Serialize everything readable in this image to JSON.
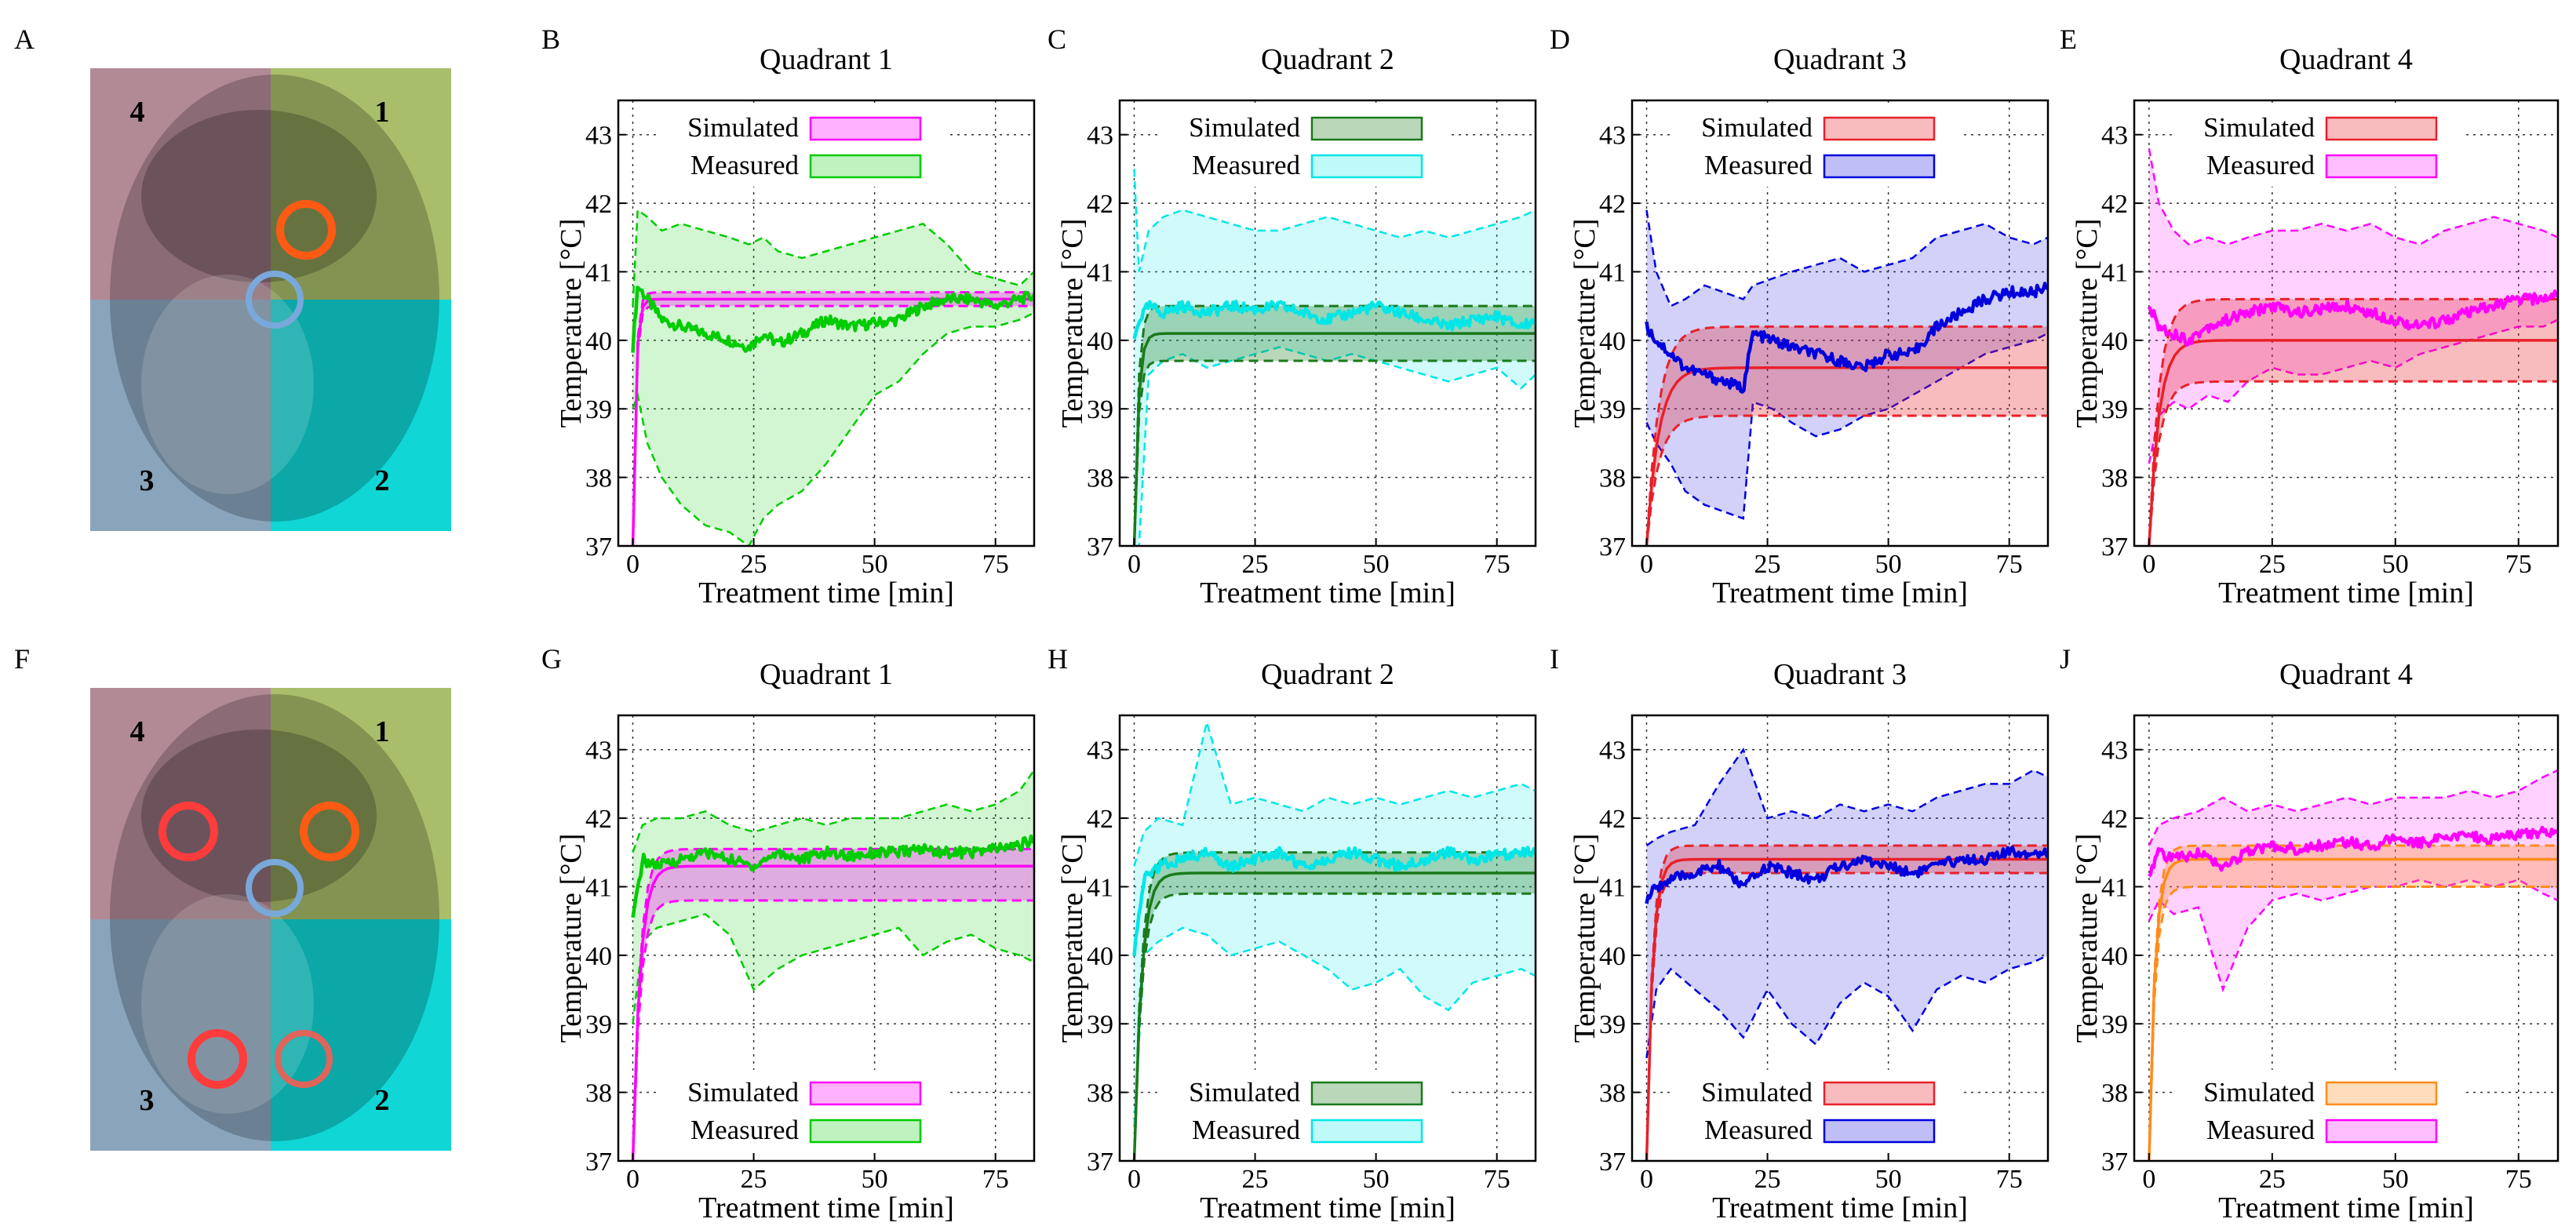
{
  "colors": {
    "magenta": "#ff00ff",
    "green": "#00cc00",
    "darkgreen": "#1a7a1a",
    "cyan": "#00e6e6",
    "red": "#e8202a",
    "blue": "#0000dd",
    "orange": "#ff8c1a"
  },
  "anatomy": [
    {
      "letter": "A",
      "quadrant_labels": [
        "4",
        "1",
        "3",
        "2"
      ],
      "circles": [
        "orange-circle",
        "blue-circle"
      ]
    },
    {
      "letter": "F",
      "quadrant_labels": [
        "4",
        "1",
        "3",
        "2"
      ],
      "circles": [
        "red-circle",
        "orange-circle",
        "blue-circle",
        "red-circle",
        "red-circle"
      ]
    }
  ],
  "chart_data": [
    {
      "letter": "B",
      "type": "line",
      "title": "Quadrant 1",
      "xlabel": "Treatment time [min]",
      "ylabel": "Temperature [°C]",
      "xlim": [
        -3,
        83
      ],
      "ylim": [
        37,
        43.5
      ],
      "xticks": [
        0,
        25,
        50,
        75
      ],
      "yticks": [
        37,
        38,
        39,
        40,
        41,
        42,
        43
      ],
      "legend": {
        "position": "top",
        "simulated": "Simulated",
        "measured": "Measured"
      },
      "sim_color": "#ff00ff",
      "meas_color": "#00cc00",
      "simulated": {
        "plateau": 40.6,
        "band": [
          40.5,
          40.7
        ],
        "tau": 0.6
      },
      "measured": {
        "x": [
          0,
          1,
          3,
          6,
          10,
          15,
          20,
          24,
          27,
          30,
          35,
          40,
          45,
          50,
          55,
          60,
          65,
          70,
          75,
          80,
          83
        ],
        "mean": [
          39.9,
          40.8,
          40.6,
          40.3,
          40.2,
          40.1,
          40.0,
          39.9,
          40.1,
          39.95,
          40.1,
          40.3,
          40.2,
          40.25,
          40.3,
          40.5,
          40.6,
          40.6,
          40.5,
          40.6,
          40.65
        ],
        "upper": [
          40.5,
          41.9,
          41.8,
          41.6,
          41.7,
          41.6,
          41.5,
          41.4,
          41.5,
          41.3,
          41.2,
          41.3,
          41.4,
          41.5,
          41.6,
          41.7,
          41.4,
          41.0,
          40.9,
          40.8,
          41.0
        ],
        "lower": [
          39.0,
          39.2,
          38.5,
          38.0,
          37.6,
          37.3,
          37.2,
          37.0,
          37.4,
          37.6,
          37.8,
          38.2,
          38.7,
          39.2,
          39.4,
          39.8,
          40.1,
          40.2,
          40.2,
          40.3,
          40.4
        ]
      }
    },
    {
      "letter": "C",
      "type": "line",
      "title": "Quadrant 2",
      "xlabel": "Treatment time [min]",
      "ylabel": "Temperature [°C]",
      "xlim": [
        -3,
        83
      ],
      "ylim": [
        37,
        43.5
      ],
      "xticks": [
        0,
        25,
        50,
        75
      ],
      "yticks": [
        37,
        38,
        39,
        40,
        41,
        42,
        43
      ],
      "legend": {
        "position": "top",
        "simulated": "Simulated",
        "measured": "Measured"
      },
      "sim_color": "#1a7a1a",
      "meas_color": "#00e6e6",
      "simulated": {
        "plateau": 40.1,
        "band": [
          39.7,
          40.5
        ],
        "tau": 0.8
      },
      "measured": {
        "x": [
          0,
          1,
          3,
          6,
          10,
          15,
          20,
          25,
          30,
          35,
          40,
          45,
          50,
          55,
          60,
          65,
          70,
          75,
          80,
          83
        ],
        "mean": [
          40.0,
          40.3,
          40.5,
          40.4,
          40.5,
          40.4,
          40.5,
          40.45,
          40.5,
          40.4,
          40.3,
          40.4,
          40.5,
          40.4,
          40.3,
          40.2,
          40.3,
          40.35,
          40.2,
          40.3
        ],
        "upper": [
          42.5,
          41.0,
          41.6,
          41.8,
          41.9,
          41.8,
          41.7,
          41.6,
          41.6,
          41.7,
          41.8,
          41.7,
          41.6,
          41.5,
          41.6,
          41.5,
          41.6,
          41.7,
          41.8,
          41.9
        ],
        "lower": [
          37.0,
          37.0,
          39.5,
          39.7,
          39.8,
          39.6,
          39.7,
          39.8,
          39.9,
          39.8,
          39.7,
          39.8,
          39.7,
          39.6,
          39.5,
          39.4,
          39.5,
          39.6,
          39.3,
          39.5
        ]
      }
    },
    {
      "letter": "D",
      "type": "line",
      "title": "Quadrant 3",
      "xlabel": "Treatment time [min]",
      "ylabel": "Temperature [°C]",
      "xlim": [
        -3,
        83
      ],
      "ylim": [
        37,
        43.5
      ],
      "xticks": [
        0,
        25,
        50,
        75
      ],
      "yticks": [
        37,
        38,
        39,
        40,
        41,
        42,
        43
      ],
      "legend": {
        "position": "top",
        "simulated": "Simulated",
        "measured": "Measured"
      },
      "sim_color": "#e8202a",
      "meas_color": "#0000dd",
      "simulated": {
        "plateau": 39.6,
        "band": [
          38.9,
          40.2
        ],
        "tau": 2.5
      },
      "measured": {
        "x": [
          0,
          2,
          5,
          8,
          12,
          16,
          20,
          22,
          26,
          30,
          35,
          40,
          45,
          50,
          55,
          60,
          65,
          70,
          75,
          80,
          83
        ],
        "mean": [
          40.2,
          40.0,
          39.8,
          39.6,
          39.5,
          39.4,
          39.3,
          40.1,
          40.0,
          39.9,
          39.8,
          39.7,
          39.6,
          39.8,
          39.8,
          40.2,
          40.4,
          40.6,
          40.7,
          40.7,
          40.8
        ],
        "upper": [
          41.9,
          41.0,
          40.5,
          40.6,
          40.8,
          40.7,
          40.6,
          40.8,
          40.9,
          41.0,
          41.1,
          41.2,
          41.0,
          41.1,
          41.2,
          41.5,
          41.6,
          41.7,
          41.5,
          41.4,
          41.5
        ],
        "lower": [
          38.8,
          38.5,
          38.2,
          37.8,
          37.6,
          37.5,
          37.4,
          39.1,
          39.0,
          38.8,
          38.6,
          38.7,
          38.9,
          39.0,
          39.2,
          39.4,
          39.6,
          39.8,
          39.9,
          40.0,
          40.1
        ]
      }
    },
    {
      "letter": "E",
      "type": "line",
      "title": "Quadrant 4",
      "xlabel": "Treatment time [min]",
      "ylabel": "Temperature [°C]",
      "xlim": [
        -3,
        83
      ],
      "ylim": [
        37,
        43.5
      ],
      "xticks": [
        0,
        25,
        50,
        75
      ],
      "yticks": [
        37,
        38,
        39,
        40,
        41,
        42,
        43
      ],
      "legend": {
        "position": "top",
        "simulated": "Simulated",
        "measured": "Measured"
      },
      "sim_color": "#e8202a",
      "meas_color": "#ff00ff",
      "simulated": {
        "plateau": 40.0,
        "band": [
          39.4,
          40.6
        ],
        "tau": 2.0
      },
      "measured": {
        "x": [
          0,
          2,
          5,
          8,
          12,
          16,
          20,
          25,
          30,
          35,
          40,
          45,
          50,
          55,
          60,
          65,
          70,
          75,
          80,
          83
        ],
        "mean": [
          40.5,
          40.2,
          40.1,
          40.0,
          40.2,
          40.3,
          40.4,
          40.5,
          40.4,
          40.45,
          40.5,
          40.4,
          40.3,
          40.2,
          40.3,
          40.4,
          40.5,
          40.6,
          40.6,
          40.7
        ],
        "upper": [
          42.8,
          42.0,
          41.6,
          41.4,
          41.5,
          41.4,
          41.5,
          41.6,
          41.6,
          41.7,
          41.6,
          41.7,
          41.5,
          41.4,
          41.6,
          41.7,
          41.8,
          41.7,
          41.6,
          41.5
        ],
        "lower": [
          38.2,
          38.9,
          39.1,
          39.0,
          39.2,
          39.1,
          39.4,
          39.6,
          39.5,
          39.5,
          39.6,
          39.7,
          39.6,
          39.8,
          39.9,
          40.0,
          40.1,
          40.2,
          40.2,
          40.3
        ]
      }
    },
    {
      "letter": "G",
      "type": "line",
      "title": "Quadrant 1",
      "xlabel": "Treatment time [min]",
      "ylabel": "Temperature [°C]",
      "xlim": [
        -3,
        83
      ],
      "ylim": [
        37,
        43.5
      ],
      "xticks": [
        0,
        25,
        50,
        75
      ],
      "yticks": [
        37,
        38,
        39,
        40,
        41,
        42,
        43
      ],
      "legend": {
        "position": "bottom",
        "simulated": "Simulated",
        "measured": "Measured"
      },
      "sim_color": "#ff00ff",
      "meas_color": "#00cc00",
      "simulated": {
        "plateau": 41.3,
        "band": [
          40.8,
          41.55
        ],
        "tau": 1.5
      },
      "measured": {
        "x": [
          0,
          2,
          5,
          10,
          15,
          20,
          25,
          30,
          35,
          40,
          45,
          50,
          55,
          60,
          65,
          70,
          75,
          80,
          83
        ],
        "mean": [
          40.5,
          41.4,
          41.3,
          41.4,
          41.5,
          41.4,
          41.3,
          41.5,
          41.4,
          41.5,
          41.45,
          41.5,
          41.5,
          41.55,
          41.5,
          41.5,
          41.55,
          41.6,
          41.7
        ],
        "upper": [
          41.5,
          41.9,
          42.0,
          42.0,
          42.1,
          41.9,
          41.8,
          41.9,
          42.0,
          41.9,
          42.0,
          42.0,
          42.0,
          42.1,
          42.2,
          42.1,
          42.2,
          42.4,
          42.7
        ],
        "lower": [
          39.0,
          40.2,
          40.4,
          40.5,
          40.6,
          40.3,
          39.5,
          39.8,
          40.0,
          40.1,
          40.2,
          40.3,
          40.4,
          40.0,
          40.2,
          40.3,
          40.1,
          40.0,
          39.9
        ]
      }
    },
    {
      "letter": "H",
      "type": "line",
      "title": "Quadrant 2",
      "xlabel": "Treatment time [min]",
      "ylabel": "Temperature [°C]",
      "xlim": [
        -3,
        83
      ],
      "ylim": [
        37,
        43.5
      ],
      "xticks": [
        0,
        25,
        50,
        75
      ],
      "yticks": [
        37,
        38,
        39,
        40,
        41,
        42,
        43
      ],
      "legend": {
        "position": "bottom",
        "simulated": "Simulated",
        "measured": "Measured"
      },
      "sim_color": "#1a7a1a",
      "meas_color": "#00e6e6",
      "simulated": {
        "plateau": 41.2,
        "band": [
          40.9,
          41.5
        ],
        "tau": 1.5
      },
      "measured": {
        "x": [
          0,
          2,
          5,
          10,
          15,
          20,
          25,
          30,
          35,
          40,
          45,
          50,
          55,
          60,
          65,
          70,
          75,
          80,
          83
        ],
        "mean": [
          40.0,
          41.1,
          41.3,
          41.4,
          41.5,
          41.3,
          41.4,
          41.5,
          41.3,
          41.4,
          41.5,
          41.4,
          41.3,
          41.4,
          41.5,
          41.4,
          41.45,
          41.5,
          41.5
        ],
        "upper": [
          41.3,
          41.8,
          42.0,
          41.9,
          43.4,
          42.2,
          42.3,
          42.2,
          42.1,
          42.3,
          42.2,
          42.3,
          42.2,
          42.3,
          42.4,
          42.3,
          42.4,
          42.5,
          42.4
        ],
        "lower": [
          37.5,
          40.0,
          40.2,
          40.4,
          40.3,
          40.0,
          40.1,
          40.2,
          40.0,
          39.8,
          39.5,
          39.6,
          39.8,
          39.4,
          39.2,
          39.6,
          39.7,
          39.8,
          39.7
        ]
      }
    },
    {
      "letter": "I",
      "type": "line",
      "title": "Quadrant 3",
      "xlabel": "Treatment time [min]",
      "ylabel": "Temperature [°C]",
      "xlim": [
        -3,
        83
      ],
      "ylim": [
        37,
        43.5
      ],
      "xticks": [
        0,
        25,
        50,
        75
      ],
      "yticks": [
        37,
        38,
        39,
        40,
        41,
        42,
        43
      ],
      "legend": {
        "position": "bottom",
        "simulated": "Simulated",
        "measured": "Measured"
      },
      "sim_color": "#e8202a",
      "meas_color": "#0000dd",
      "simulated": {
        "plateau": 41.4,
        "band": [
          41.2,
          41.6
        ],
        "tau": 1.2
      },
      "measured": {
        "x": [
          0,
          2,
          5,
          10,
          15,
          20,
          25,
          30,
          35,
          40,
          45,
          50,
          55,
          60,
          65,
          70,
          75,
          80,
          83
        ],
        "mean": [
          40.8,
          41.0,
          41.1,
          41.2,
          41.3,
          41.0,
          41.3,
          41.2,
          41.1,
          41.3,
          41.4,
          41.3,
          41.2,
          41.3,
          41.4,
          41.4,
          41.5,
          41.5,
          41.5
        ],
        "upper": [
          41.6,
          41.7,
          41.8,
          41.9,
          42.5,
          43.0,
          42.0,
          42.1,
          42.0,
          42.2,
          42.1,
          42.2,
          42.1,
          42.3,
          42.4,
          42.5,
          42.5,
          42.7,
          42.6
        ],
        "lower": [
          38.5,
          39.5,
          39.8,
          39.5,
          39.2,
          38.8,
          39.5,
          39.0,
          38.7,
          39.3,
          39.6,
          39.4,
          38.9,
          39.5,
          39.7,
          39.6,
          39.8,
          39.9,
          40.0
        ]
      }
    },
    {
      "letter": "J",
      "type": "line",
      "title": "Quadrant 4",
      "xlabel": "Treatment time [min]",
      "ylabel": "Temperature [°C]",
      "xlim": [
        -3,
        83
      ],
      "ylim": [
        37,
        43.5
      ],
      "xticks": [
        0,
        25,
        50,
        75
      ],
      "yticks": [
        37,
        38,
        39,
        40,
        41,
        42,
        43
      ],
      "legend": {
        "position": "bottom",
        "simulated": "Simulated",
        "measured": "Measured"
      },
      "sim_color": "#ff8c1a",
      "meas_color": "#ff00ff",
      "simulated": {
        "plateau": 41.4,
        "band": [
          41.0,
          41.6
        ],
        "tau": 1.2
      },
      "measured": {
        "x": [
          0,
          2,
          5,
          10,
          15,
          20,
          25,
          30,
          35,
          40,
          45,
          50,
          55,
          60,
          65,
          70,
          75,
          80,
          83
        ],
        "mean": [
          41.2,
          41.5,
          41.4,
          41.5,
          41.3,
          41.5,
          41.6,
          41.55,
          41.6,
          41.65,
          41.6,
          41.7,
          41.65,
          41.7,
          41.75,
          41.7,
          41.75,
          41.8,
          41.8
        ],
        "upper": [
          41.6,
          41.9,
          42.0,
          42.1,
          42.3,
          42.1,
          42.2,
          42.1,
          42.2,
          42.3,
          42.2,
          42.3,
          42.3,
          42.3,
          42.4,
          42.3,
          42.4,
          42.6,
          42.7
        ],
        "lower": [
          40.5,
          40.8,
          40.6,
          40.7,
          39.5,
          40.4,
          40.8,
          40.9,
          40.8,
          40.9,
          41.0,
          41.0,
          41.1,
          41.0,
          41.1,
          41.0,
          41.1,
          40.9,
          40.8
        ]
      }
    }
  ]
}
